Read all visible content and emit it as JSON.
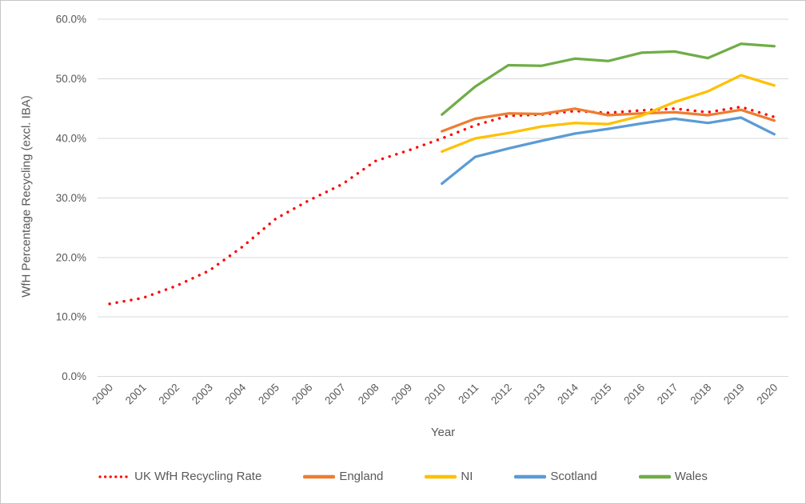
{
  "chart": {
    "ylabel": "WfH Percentage Recycling (excl. IBA)",
    "xlabel": "Year"
  },
  "chart_data": {
    "type": "line",
    "title": "",
    "xlabel": "Year",
    "ylabel": "WfH Percentage Recycling (excl. IBA)",
    "x": [
      2000,
      2001,
      2002,
      2003,
      2004,
      2005,
      2006,
      2007,
      2008,
      2009,
      2010,
      2011,
      2012,
      2013,
      2014,
      2015,
      2016,
      2017,
      2018,
      2019,
      2020
    ],
    "x_tick_labels": [
      "2000",
      "2001",
      "2002",
      "2003",
      "2004",
      "2005",
      "2006",
      "2007",
      "2008",
      "2009",
      "2010",
      "2011",
      "2012",
      "2013",
      "2014",
      "2015",
      "2016",
      "2017",
      "2018",
      "2019",
      "2020"
    ],
    "ylim": [
      0,
      60
    ],
    "yticks": [
      0,
      10,
      20,
      30,
      40,
      50,
      60
    ],
    "ytick_labels": [
      "0.0%",
      "10.0%",
      "20.0%",
      "30.0%",
      "40.0%",
      "50.0%",
      "60.0%"
    ],
    "grid": true,
    "gridline_color": "#d9d9d9",
    "axis_text_color": "#595959",
    "legend_position": "bottom",
    "series": [
      {
        "name": "UK WfH Recycling Rate",
        "color": "#ff0000",
        "style": "dotted",
        "start_year": 2000,
        "values": [
          12.2,
          13.2,
          15.2,
          17.8,
          21.8,
          26.5,
          29.6,
          32.3,
          36.2,
          38.0,
          40.0,
          42.2,
          43.8,
          44.0,
          44.6,
          44.3,
          44.7,
          45.0,
          44.4,
          45.3,
          43.6
        ]
      },
      {
        "name": "England",
        "color": "#ed7d31",
        "style": "solid",
        "start_year": 2010,
        "values": [
          41.2,
          43.3,
          44.2,
          44.1,
          45.0,
          43.9,
          44.2,
          44.4,
          43.9,
          44.8,
          43.0
        ]
      },
      {
        "name": "NI",
        "color": "#ffc000",
        "style": "solid",
        "start_year": 2010,
        "values": [
          37.8,
          40.0,
          40.9,
          42.0,
          42.6,
          42.4,
          43.8,
          46.1,
          47.9,
          50.6,
          48.9
        ]
      },
      {
        "name": "Scotland",
        "color": "#5b9bd5",
        "style": "solid",
        "start_year": 2010,
        "values": [
          32.4,
          36.9,
          38.3,
          39.6,
          40.8,
          41.6,
          42.5,
          43.3,
          42.6,
          43.5,
          40.7
        ]
      },
      {
        "name": "Wales",
        "color": "#70ad47",
        "style": "solid",
        "start_year": 2010,
        "values": [
          44.0,
          48.7,
          52.3,
          52.2,
          53.4,
          53.0,
          54.4,
          54.6,
          53.5,
          55.9,
          55.5
        ]
      }
    ]
  }
}
